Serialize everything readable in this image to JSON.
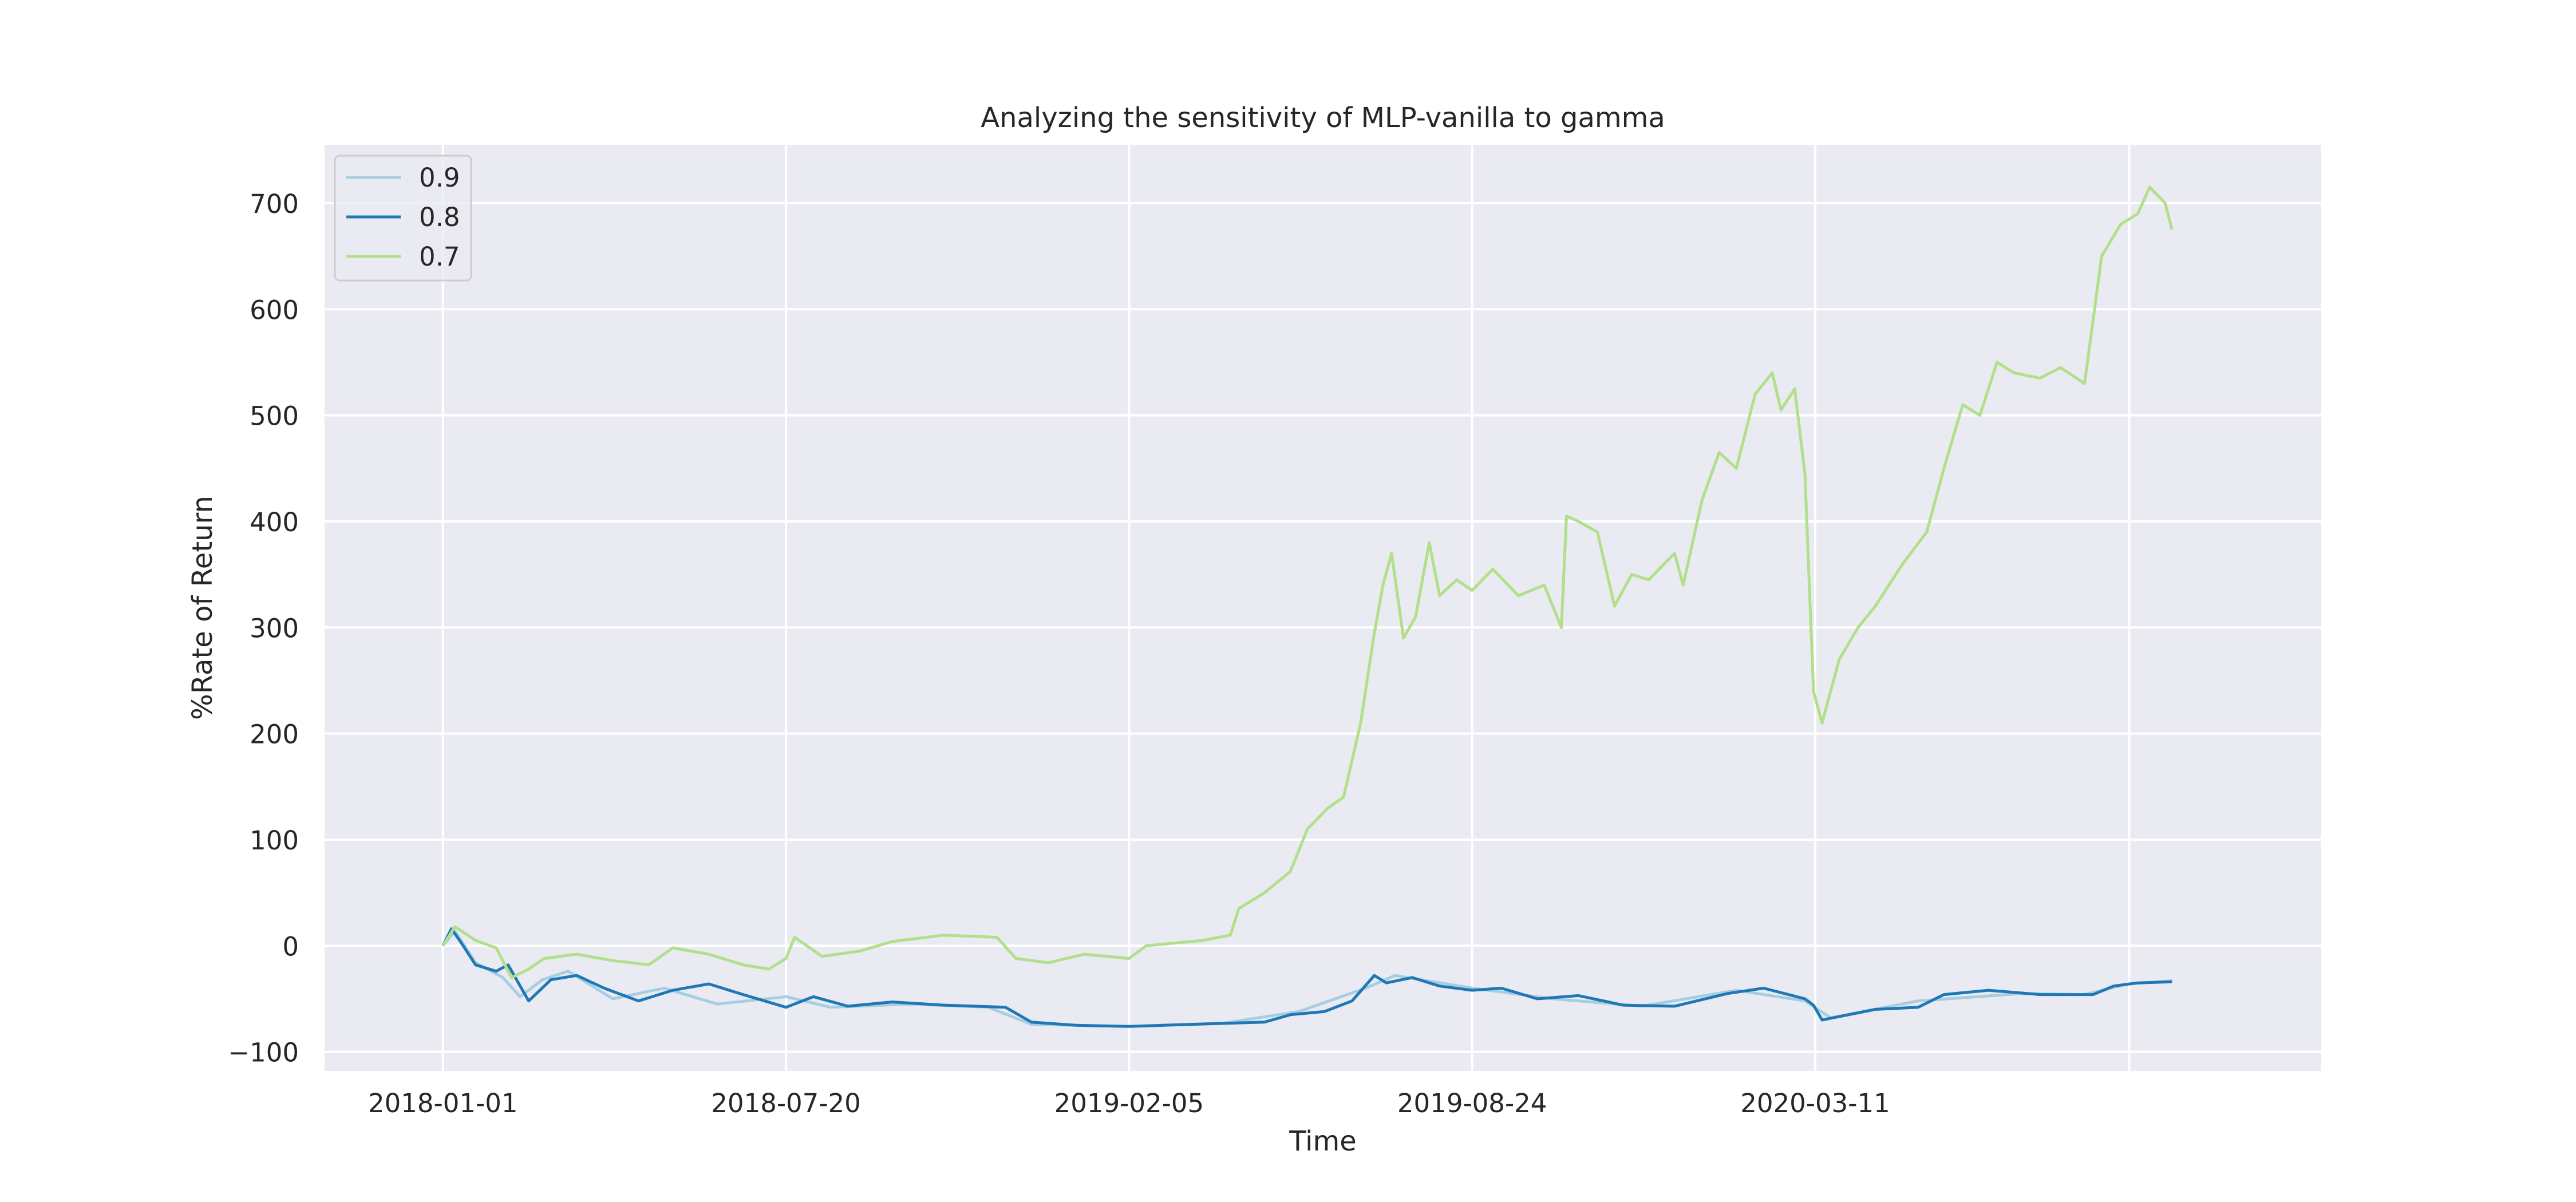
{
  "chart_data": {
    "type": "line",
    "title": "Analyzing the sensitivity of MLP-vanilla to gamma",
    "xlabel": "Time",
    "ylabel": "%Rate of Return",
    "xlim": [
      "2017-10-24",
      "2020-12-31"
    ],
    "ylim": [
      -118,
      755
    ],
    "x_ticks": [
      "2018-01-01",
      "2018-07-20",
      "2019-02-05",
      "2019-08-24",
      "2020-03-11"
    ],
    "y_ticks": [
      -100,
      0,
      100,
      200,
      300,
      400,
      500,
      600,
      700
    ],
    "grid": true,
    "legend_position": "top-left",
    "colors": {
      "background": "#eaeaf2",
      "grid": "#ffffff",
      "text": "#262626",
      "legend_border": "#cccccc"
    },
    "series": [
      {
        "name": "0.9",
        "color": "#a6cee3",
        "points": [
          [
            "2018-01-01",
            0
          ],
          [
            "2018-01-08",
            14
          ],
          [
            "2018-01-20",
            -16
          ],
          [
            "2018-02-05",
            -30
          ],
          [
            "2018-02-15",
            -48
          ],
          [
            "2018-02-28",
            -32
          ],
          [
            "2018-03-15",
            -24
          ],
          [
            "2018-04-10",
            -50
          ],
          [
            "2018-05-10",
            -40
          ],
          [
            "2018-06-10",
            -55
          ],
          [
            "2018-07-20",
            -48
          ],
          [
            "2018-08-15",
            -58
          ],
          [
            "2018-10-01",
            -55
          ],
          [
            "2018-11-15",
            -58
          ],
          [
            "2018-12-10",
            -74
          ],
          [
            "2019-02-05",
            -76
          ],
          [
            "2019-04-01",
            -73
          ],
          [
            "2019-05-15",
            -62
          ],
          [
            "2019-06-23",
            -40
          ],
          [
            "2019-07-10",
            -28
          ],
          [
            "2019-08-24",
            -40
          ],
          [
            "2019-10-10",
            -50
          ],
          [
            "2019-12-01",
            -57
          ],
          [
            "2020-01-25",
            -42
          ],
          [
            "2020-03-05",
            -52
          ],
          [
            "2020-03-20",
            -68
          ],
          [
            "2020-05-10",
            -52
          ],
          [
            "2020-07-10",
            -45
          ],
          [
            "2020-08-15",
            -46
          ],
          [
            "2020-09-10",
            -36
          ],
          [
            "2020-10-05",
            -33
          ]
        ]
      },
      {
        "name": "0.8",
        "color": "#1f78b4",
        "points": [
          [
            "2018-01-01",
            0
          ],
          [
            "2018-01-06",
            16
          ],
          [
            "2018-01-12",
            2
          ],
          [
            "2018-01-20",
            -18
          ],
          [
            "2018-02-01",
            -24
          ],
          [
            "2018-02-08",
            -18
          ],
          [
            "2018-02-20",
            -52
          ],
          [
            "2018-03-05",
            -32
          ],
          [
            "2018-03-20",
            -28
          ],
          [
            "2018-04-05",
            -40
          ],
          [
            "2018-04-25",
            -52
          ],
          [
            "2018-05-15",
            -42
          ],
          [
            "2018-06-05",
            -36
          ],
          [
            "2018-06-25",
            -46
          ],
          [
            "2018-07-20",
            -58
          ],
          [
            "2018-08-05",
            -48
          ],
          [
            "2018-08-25",
            -57
          ],
          [
            "2018-09-20",
            -53
          ],
          [
            "2018-10-20",
            -56
          ],
          [
            "2018-11-25",
            -58
          ],
          [
            "2018-12-10",
            -72
          ],
          [
            "2019-01-05",
            -75
          ],
          [
            "2019-02-05",
            -76
          ],
          [
            "2019-03-15",
            -74
          ],
          [
            "2019-04-25",
            -72
          ],
          [
            "2019-05-10",
            -65
          ],
          [
            "2019-05-30",
            -62
          ],
          [
            "2019-06-15",
            -52
          ],
          [
            "2019-06-28",
            -28
          ],
          [
            "2019-07-05",
            -35
          ],
          [
            "2019-07-20",
            -30
          ],
          [
            "2019-08-05",
            -38
          ],
          [
            "2019-08-24",
            -42
          ],
          [
            "2019-09-10",
            -40
          ],
          [
            "2019-10-01",
            -50
          ],
          [
            "2019-10-25",
            -47
          ],
          [
            "2019-11-20",
            -56
          ],
          [
            "2019-12-20",
            -57
          ],
          [
            "2020-01-20",
            -45
          ],
          [
            "2020-02-10",
            -40
          ],
          [
            "2020-03-05",
            -50
          ],
          [
            "2020-03-10",
            -56
          ],
          [
            "2020-03-15",
            -70
          ],
          [
            "2020-04-15",
            -60
          ],
          [
            "2020-05-10",
            -58
          ],
          [
            "2020-05-25",
            -46
          ],
          [
            "2020-06-20",
            -42
          ],
          [
            "2020-07-20",
            -46
          ],
          [
            "2020-08-20",
            -46
          ],
          [
            "2020-09-01",
            -38
          ],
          [
            "2020-09-15",
            -35
          ],
          [
            "2020-10-05",
            -34
          ]
        ]
      },
      {
        "name": "0.7",
        "color": "#b2df8a",
        "points": [
          [
            "2018-01-01",
            0
          ],
          [
            "2018-01-08",
            18
          ],
          [
            "2018-01-20",
            5
          ],
          [
            "2018-02-01",
            -2
          ],
          [
            "2018-02-10",
            -30
          ],
          [
            "2018-02-20",
            -22
          ],
          [
            "2018-03-01",
            -12
          ],
          [
            "2018-03-20",
            -8
          ],
          [
            "2018-04-10",
            -14
          ],
          [
            "2018-05-01",
            -18
          ],
          [
            "2018-05-15",
            -2
          ],
          [
            "2018-06-05",
            -8
          ],
          [
            "2018-06-25",
            -18
          ],
          [
            "2018-07-10",
            -22
          ],
          [
            "2018-07-20",
            -12
          ],
          [
            "2018-07-25",
            8
          ],
          [
            "2018-08-10",
            -10
          ],
          [
            "2018-09-01",
            -5
          ],
          [
            "2018-09-20",
            4
          ],
          [
            "2018-10-20",
            10
          ],
          [
            "2018-11-20",
            8
          ],
          [
            "2018-12-01",
            -12
          ],
          [
            "2018-12-20",
            -16
          ],
          [
            "2019-01-10",
            -8
          ],
          [
            "2019-02-05",
            -12
          ],
          [
            "2019-02-15",
            0
          ],
          [
            "2019-03-20",
            5
          ],
          [
            "2019-04-05",
            10
          ],
          [
            "2019-04-10",
            35
          ],
          [
            "2019-04-25",
            50
          ],
          [
            "2019-05-10",
            70
          ],
          [
            "2019-05-20",
            110
          ],
          [
            "2019-06-01",
            130
          ],
          [
            "2019-06-10",
            140
          ],
          [
            "2019-06-20",
            210
          ],
          [
            "2019-06-28",
            295
          ],
          [
            "2019-07-03",
            340
          ],
          [
            "2019-07-08",
            370
          ],
          [
            "2019-07-15",
            290
          ],
          [
            "2019-07-22",
            310
          ],
          [
            "2019-07-30",
            380
          ],
          [
            "2019-08-05",
            330
          ],
          [
            "2019-08-15",
            345
          ],
          [
            "2019-08-24",
            335
          ],
          [
            "2019-09-05",
            355
          ],
          [
            "2019-09-20",
            330
          ],
          [
            "2019-10-05",
            340
          ],
          [
            "2019-10-15",
            300
          ],
          [
            "2019-10-18",
            405
          ],
          [
            "2019-10-25",
            400
          ],
          [
            "2019-11-05",
            390
          ],
          [
            "2019-11-15",
            320
          ],
          [
            "2019-11-25",
            350
          ],
          [
            "2019-12-05",
            345
          ],
          [
            "2019-12-20",
            370
          ],
          [
            "2019-12-25",
            340
          ],
          [
            "2020-01-05",
            420
          ],
          [
            "2020-01-15",
            465
          ],
          [
            "2020-01-25",
            450
          ],
          [
            "2020-02-05",
            520
          ],
          [
            "2020-02-15",
            540
          ],
          [
            "2020-02-20",
            505
          ],
          [
            "2020-02-28",
            525
          ],
          [
            "2020-03-05",
            445
          ],
          [
            "2020-03-10",
            240
          ],
          [
            "2020-03-15",
            210
          ],
          [
            "2020-03-25",
            270
          ],
          [
            "2020-04-05",
            300
          ],
          [
            "2020-04-15",
            320
          ],
          [
            "2020-05-01",
            360
          ],
          [
            "2020-05-15",
            390
          ],
          [
            "2020-05-25",
            450
          ],
          [
            "2020-06-05",
            510
          ],
          [
            "2020-06-15",
            500
          ],
          [
            "2020-06-25",
            550
          ],
          [
            "2020-07-05",
            540
          ],
          [
            "2020-07-20",
            535
          ],
          [
            "2020-08-01",
            545
          ],
          [
            "2020-08-15",
            530
          ],
          [
            "2020-08-25",
            650
          ],
          [
            "2020-09-05",
            680
          ],
          [
            "2020-09-15",
            690
          ],
          [
            "2020-09-22",
            715
          ],
          [
            "2020-10-01",
            700
          ],
          [
            "2020-10-05",
            675
          ]
        ]
      }
    ]
  }
}
